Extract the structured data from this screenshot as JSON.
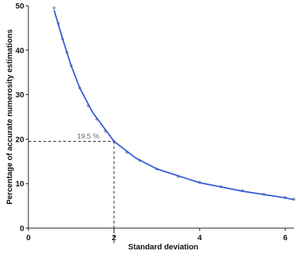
{
  "chart_data": {
    "type": "scatter",
    "title": "",
    "xlabel": "Standard deviation",
    "ylabel": "Percentage of accurate numerosity estimations",
    "xlim": [
      0,
      6.2
    ],
    "ylim": [
      0,
      50
    ],
    "x_ticks": [
      "0",
      "2",
      "4",
      "6"
    ],
    "y_ticks": [
      "0",
      "10",
      "20",
      "30",
      "40",
      "50"
    ],
    "grid": false,
    "legend": "none",
    "colors": {
      "points": "#555555",
      "fit": "#3b5fd6",
      "reference": "#222222",
      "annotation": "#666666"
    },
    "series": [
      {
        "kind": "scatter-cloud",
        "x_range": [
          0.6,
          6.2
        ],
        "points": [
          {
            "x": 0.6,
            "y": 49.5
          },
          {
            "x": 0.7,
            "y": 46.0
          },
          {
            "x": 0.8,
            "y": 42.5
          },
          {
            "x": 0.9,
            "y": 39.5
          },
          {
            "x": 1.0,
            "y": 36.5
          },
          {
            "x": 1.2,
            "y": 31.5
          },
          {
            "x": 1.4,
            "y": 27.5
          },
          {
            "x": 1.6,
            "y": 24.5
          },
          {
            "x": 1.8,
            "y": 21.8
          },
          {
            "x": 2.0,
            "y": 19.5
          },
          {
            "x": 2.3,
            "y": 17.0
          },
          {
            "x": 2.6,
            "y": 15.2
          },
          {
            "x": 3.0,
            "y": 13.3
          },
          {
            "x": 3.5,
            "y": 11.6
          },
          {
            "x": 4.0,
            "y": 10.3
          },
          {
            "x": 4.5,
            "y": 9.3
          },
          {
            "x": 5.0,
            "y": 8.4
          },
          {
            "x": 5.5,
            "y": 7.6
          },
          {
            "x": 6.0,
            "y": 6.9
          },
          {
            "x": 6.2,
            "y": 6.5
          }
        ]
      },
      {
        "kind": "fit-line",
        "points": [
          {
            "x": 0.6,
            "y": 49.0
          },
          {
            "x": 0.8,
            "y": 42.5
          },
          {
            "x": 1.0,
            "y": 36.5
          },
          {
            "x": 1.2,
            "y": 31.5
          },
          {
            "x": 1.5,
            "y": 26.0
          },
          {
            "x": 2.0,
            "y": 19.5
          },
          {
            "x": 2.5,
            "y": 15.8
          },
          {
            "x": 3.0,
            "y": 13.3
          },
          {
            "x": 4.0,
            "y": 10.2
          },
          {
            "x": 5.0,
            "y": 8.3
          },
          {
            "x": 6.0,
            "y": 6.8
          },
          {
            "x": 6.2,
            "y": 6.4
          }
        ]
      }
    ],
    "reference": {
      "x": 2,
      "y": 19.5
    },
    "annotations": [
      {
        "text": "19.5 %",
        "x": 2,
        "y": 19.5
      }
    ]
  }
}
